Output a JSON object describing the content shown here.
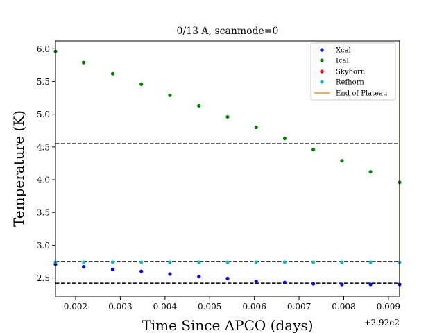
{
  "chart_data": {
    "type": "scatter",
    "title": "0/13 A, scanmode=0",
    "xlabel": "Time Since APCO (days)",
    "ylabel": "Temperature (K)",
    "x_offset_label": "+2.92e2",
    "xlim": [
      0.00155,
      0.00925
    ],
    "ylim": [
      2.22,
      6.12
    ],
    "xticks": [
      0.002,
      0.003,
      0.004,
      0.005,
      0.006,
      0.007,
      0.008,
      0.009
    ],
    "xtick_labels": [
      "0.002",
      "0.003",
      "0.004",
      "0.005",
      "0.006",
      "0.007",
      "0.008",
      "0.009"
    ],
    "yticks": [
      2.5,
      3.0,
      3.5,
      4.0,
      4.5,
      5.0,
      5.5,
      6.0
    ],
    "ytick_labels": [
      "2.5",
      "3.0",
      "3.5",
      "4.0",
      "4.5",
      "5.0",
      "5.5",
      "6.0"
    ],
    "grid": false,
    "legend_position": "top-right",
    "x": [
      0.00155,
      0.00218,
      0.00283,
      0.00347,
      0.00411,
      0.00476,
      0.0054,
      0.00604,
      0.00668,
      0.00732,
      0.00796,
      0.0086,
      0.00925
    ],
    "series": [
      {
        "name": "Xcal",
        "color": "#0000ff",
        "values": [
          2.71,
          2.67,
          2.63,
          2.6,
          2.56,
          2.52,
          2.49,
          2.45,
          2.43,
          2.41,
          2.4,
          2.4,
          2.4
        ]
      },
      {
        "name": "Ical",
        "color": "#008000",
        "values": [
          5.96,
          5.79,
          5.62,
          5.46,
          5.29,
          5.13,
          4.96,
          4.8,
          4.63,
          4.46,
          4.29,
          4.12,
          3.96
        ]
      },
      {
        "name": "Skyhorn",
        "color": "#ff0000",
        "values": []
      },
      {
        "name": "Refhorn",
        "color": "#00bfbf",
        "values": [
          2.74,
          2.74,
          2.74,
          2.74,
          2.74,
          2.74,
          2.74,
          2.74,
          2.74,
          2.74,
          2.74,
          2.74,
          2.74
        ]
      }
    ],
    "hlines": [
      4.55,
      2.75,
      2.42
    ],
    "hline_color": "#000000",
    "vline": {
      "name": "End of Plateau",
      "x": 0.00925,
      "color": "#e69138"
    }
  }
}
